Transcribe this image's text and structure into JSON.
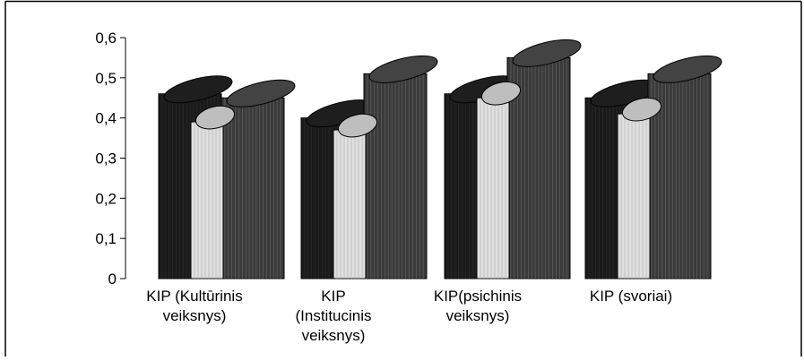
{
  "chart_data": {
    "type": "bar",
    "bar_style": "3d-cylinder",
    "title": "",
    "xlabel": "",
    "ylabel": "",
    "ylim": [
      0,
      0.6
    ],
    "yticks": [
      "0",
      "0,1",
      "0,2",
      "0,3",
      "0,4",
      "0,5",
      "0,6"
    ],
    "grid": false,
    "legend": "none",
    "categories": [
      [
        "KIP (Kultūrinis",
        "veiksnys)"
      ],
      [
        "KIP",
        "(Institucinis",
        "veiksnys)"
      ],
      [
        "KIP(psichinis",
        "veiksnys)"
      ],
      [
        "KIP (svoriai)"
      ]
    ],
    "series": [
      {
        "values": [
          0.46,
          0.4,
          0.46,
          0.45
        ],
        "color": "#1a1a1a"
      },
      {
        "values": [
          0.39,
          0.37,
          0.45,
          0.41
        ],
        "color": "#e0e0e0"
      },
      {
        "values": [
          0.45,
          0.51,
          0.55,
          0.51
        ],
        "color": "#3a3a3a"
      }
    ]
  }
}
